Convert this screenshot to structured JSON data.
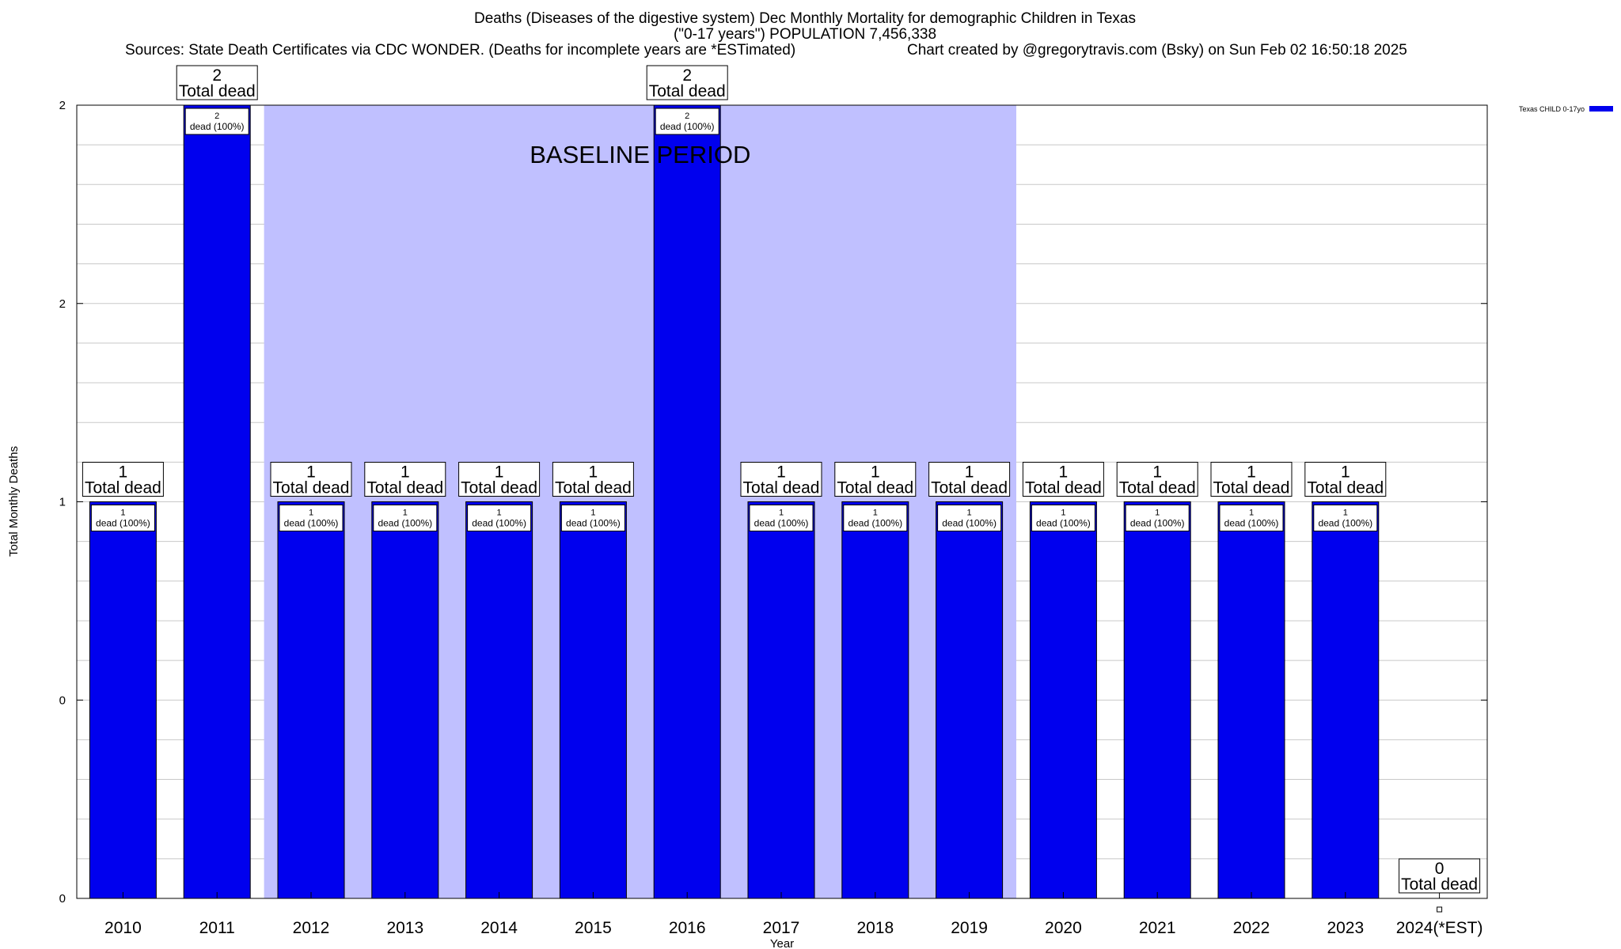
{
  "chart_data": {
    "type": "bar",
    "title": "Deaths (Diseases of the digestive system) Dec Monthly Mortality for demographic Children in Texas",
    "subtitle": "(\"0-17 years\") POPULATION 7,456,338",
    "sources": "Sources: State Death Certificates via CDC WONDER. (Deaths for incomplete years are *ESTimated)",
    "credit": "Chart created by @gregorytravis.com (Bsky) on Sun Feb 02 16:50:18 2025",
    "xlabel": "Year",
    "ylabel": "Total Monthly Deaths",
    "categories": [
      "2010",
      "2011",
      "2012",
      "2013",
      "2014",
      "2015",
      "2016",
      "2017",
      "2018",
      "2019",
      "2020",
      "2021",
      "2022",
      "2023",
      "2024(*EST)"
    ],
    "series": [
      {
        "name": "Texas CHILD 0-17yo",
        "color": "#0000ee",
        "values": [
          1,
          2,
          1,
          1,
          1,
          1,
          2,
          1,
          1,
          1,
          1,
          1,
          1,
          1,
          0
        ]
      }
    ],
    "total_labels": [
      "1\nTotal dead",
      "2\nTotal dead",
      "1\nTotal dead",
      "1\nTotal dead",
      "1\nTotal dead",
      "1\nTotal dead",
      "2\nTotal dead",
      "1\nTotal dead",
      "1\nTotal dead",
      "1\nTotal dead",
      "1\nTotal dead",
      "1\nTotal dead",
      "1\nTotal dead",
      "1\nTotal dead",
      "0\nTotal dead"
    ],
    "inner_labels": [
      "1",
      "2",
      "1",
      "1",
      "1",
      "1",
      "2",
      "1",
      "1",
      "1",
      "1",
      "1",
      "1",
      "1",
      ""
    ],
    "inner_label_suffix": "dead (100%)",
    "total_label_suffix": "Total dead",
    "yticks": [
      "0",
      "0",
      "1",
      "2",
      "2"
    ],
    "ylim": [
      0,
      2
    ],
    "baseline": {
      "label": "BASELINE PERIOD",
      "from": "2012",
      "to": "2019",
      "color": "#c0c0ff"
    },
    "legend_position": "top-right",
    "grid": true
  }
}
